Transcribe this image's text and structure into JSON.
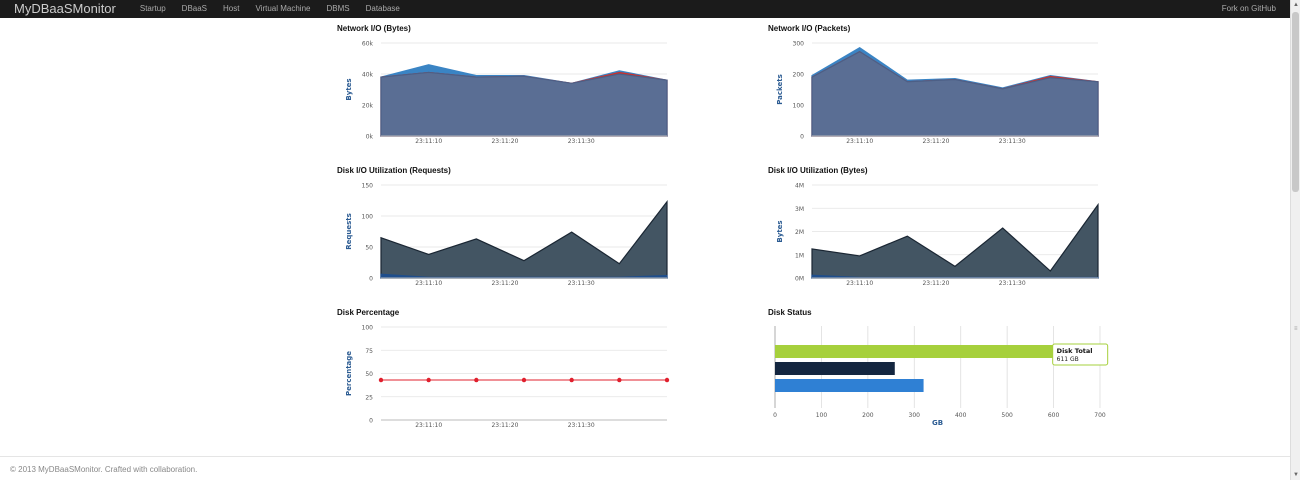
{
  "navbar": {
    "brand": "MyDBaaSMonitor",
    "items": [
      "Startup",
      "DBaaS",
      "Host",
      "Virtual Machine",
      "DBMS",
      "Database"
    ],
    "right_link": "Fork on GitHub",
    "bg_color": "#1b1b1b"
  },
  "tooltip": {
    "title": "Disk Total",
    "value": "611 GB"
  },
  "footer": {
    "text": "© 2013 MyDBaaSMonitor. Crafted with collaboration."
  },
  "chart_data": [
    {
      "id": "net_bytes",
      "type": "area",
      "title": "Network I/O (Bytes)",
      "ylabel": "Bytes",
      "ylim": [
        0,
        60000
      ],
      "yticks": [
        0,
        20000,
        40000,
        60000
      ],
      "ytick_labels": [
        "0k",
        "20k",
        "40k",
        "60k"
      ],
      "x": [
        0,
        1,
        2,
        3,
        4,
        5,
        6
      ],
      "xticks": [
        1,
        2.6,
        4.2
      ],
      "xtick_labels": [
        "23:11:10",
        "23:11:20",
        "23:11:30"
      ],
      "series": [
        {
          "values": [
            38000,
            46000,
            39000,
            39000,
            34000,
            42000,
            36000
          ],
          "color": "#3a84c4",
          "edge": "#3a84c4"
        },
        {
          "values": [
            38000,
            41000,
            38000,
            38500,
            34000,
            41000,
            36000
          ],
          "color": "#c9302c",
          "edge": "#c9302c"
        },
        {
          "values": [
            38000,
            41000,
            38000,
            38500,
            34000,
            40000,
            36000
          ],
          "color": "#5a6e94",
          "edge": "#4c5f86"
        }
      ]
    },
    {
      "id": "net_packets",
      "type": "area",
      "title": "Network I/O (Packets)",
      "ylabel": "Packets",
      "ylim": [
        0,
        300
      ],
      "yticks": [
        0,
        100,
        200,
        300
      ],
      "ytick_labels": [
        "0",
        "100",
        "200",
        "300"
      ],
      "x": [
        0,
        1,
        2,
        3,
        4,
        5,
        6
      ],
      "xticks": [
        1,
        2.6,
        4.2
      ],
      "xtick_labels": [
        "23:11:10",
        "23:11:20",
        "23:11:30"
      ],
      "series": [
        {
          "values": [
            195,
            285,
            180,
            185,
            155,
            195,
            175
          ],
          "color": "#3a84c4",
          "edge": "#3a84c4"
        },
        {
          "values": [
            190,
            272,
            175,
            182,
            152,
            192,
            175
          ],
          "color": "#c9302c",
          "edge": "#c9302c"
        },
        {
          "values": [
            190,
            272,
            175,
            182,
            152,
            188,
            175
          ],
          "color": "#5a6e94",
          "edge": "#4c5f86"
        }
      ]
    },
    {
      "id": "disk_requests",
      "type": "area",
      "title": "Disk I/O Utilization (Requests)",
      "ylabel": "Requests",
      "ylim": [
        0,
        150
      ],
      "yticks": [
        0,
        50,
        100,
        150
      ],
      "ytick_labels": [
        "0",
        "50",
        "100",
        "150"
      ],
      "x": [
        0,
        1,
        2,
        3,
        4,
        5,
        6
      ],
      "xticks": [
        1,
        2.6,
        4.2
      ],
      "xtick_labels": [
        "23:11:10",
        "23:11:20",
        "23:11:30"
      ],
      "series": [
        {
          "values": [
            65,
            38,
            63,
            28,
            74,
            23,
            123
          ],
          "color": "#435563",
          "edge": "#1a2633"
        },
        {
          "values": [
            6,
            1,
            1,
            1,
            1,
            1,
            4
          ],
          "color": "#1f4e8c",
          "edge": "#1f4e8c"
        }
      ]
    },
    {
      "id": "disk_bytes",
      "type": "area",
      "title": "Disk I/O Utilization (Bytes)",
      "ylabel": "Bytes",
      "ylim": [
        0,
        4000000
      ],
      "yticks": [
        0,
        1000000,
        2000000,
        3000000,
        4000000
      ],
      "ytick_labels": [
        "0M",
        "1M",
        "2M",
        "3M",
        "4M"
      ],
      "x": [
        0,
        1,
        2,
        3,
        4,
        5,
        6
      ],
      "xticks": [
        1,
        2.6,
        4.2
      ],
      "xtick_labels": [
        "23:11:10",
        "23:11:20",
        "23:11:30"
      ],
      "series": [
        {
          "values": [
            1250000,
            950000,
            1800000,
            500000,
            2150000,
            300000,
            3150000
          ],
          "color": "#435563",
          "edge": "#1a2633"
        },
        {
          "values": [
            120000,
            20000,
            20000,
            20000,
            20000,
            20000,
            20000
          ],
          "color": "#1f4e8c",
          "edge": "#1f4e8c"
        }
      ]
    },
    {
      "id": "disk_pct",
      "type": "line",
      "title": "Disk Percentage",
      "ylabel": "Percentage",
      "ylim": [
        0,
        100
      ],
      "yticks": [
        0,
        25,
        50,
        75,
        100
      ],
      "ytick_labels": [
        "0",
        "25",
        "50",
        "75",
        "100"
      ],
      "x": [
        0,
        1,
        2,
        3,
        4,
        5,
        6
      ],
      "xticks": [
        1,
        2.6,
        4.2
      ],
      "xtick_labels": [
        "23:11:10",
        "23:11:20",
        "23:11:30"
      ],
      "series": [
        {
          "values": [
            43,
            43,
            43,
            43,
            43,
            43,
            43
          ],
          "color": "#e0202e"
        }
      ]
    },
    {
      "id": "disk_status",
      "type": "bar",
      "orientation": "horizontal",
      "title": "Disk Status",
      "xlabel": "GB",
      "xlim": [
        0,
        700
      ],
      "xticks": [
        0,
        100,
        200,
        300,
        400,
        500,
        600,
        700
      ],
      "xtick_labels": [
        "0",
        "100",
        "200",
        "300",
        "400",
        "500",
        "600",
        "700"
      ],
      "bars": [
        {
          "value": 611,
          "color": "#a6d03c"
        },
        {
          "value": 258,
          "color": "#142640"
        },
        {
          "value": 320,
          "color": "#2f80d4"
        }
      ]
    }
  ]
}
